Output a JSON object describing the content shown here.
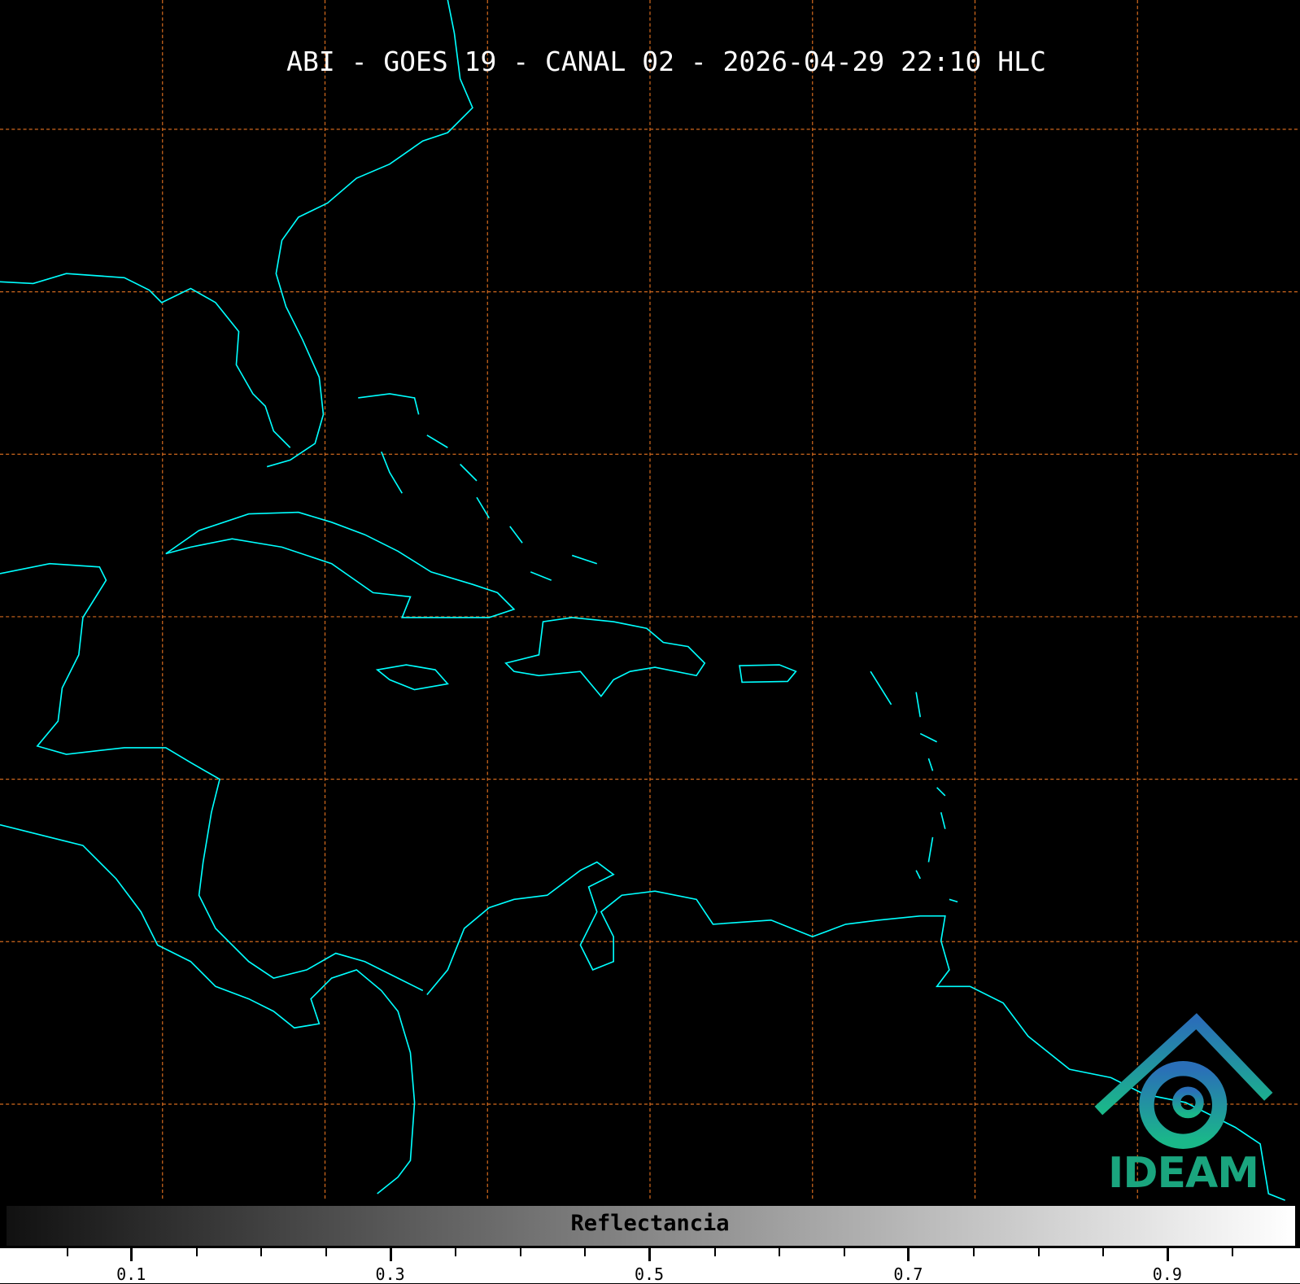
{
  "title": "ABI - GOES 19 - CANAL 02 - 2026-04-29 22:10 HLC",
  "colorbar": {
    "label": "Reflectancia",
    "range": [
      0,
      1
    ],
    "colormap": "grayscale black-to-white",
    "ticks": [
      "0.1",
      "0.3",
      "0.5",
      "0.7",
      "0.9"
    ],
    "minor_tick_step": 0.05
  },
  "logo": {
    "text": "IDEAM"
  },
  "colors": {
    "coastline": "#00ffff",
    "grid": "#d2691e",
    "background": "#000000",
    "logo": "#1aa57e"
  },
  "grid": {
    "style": "dashed",
    "visible": true
  }
}
